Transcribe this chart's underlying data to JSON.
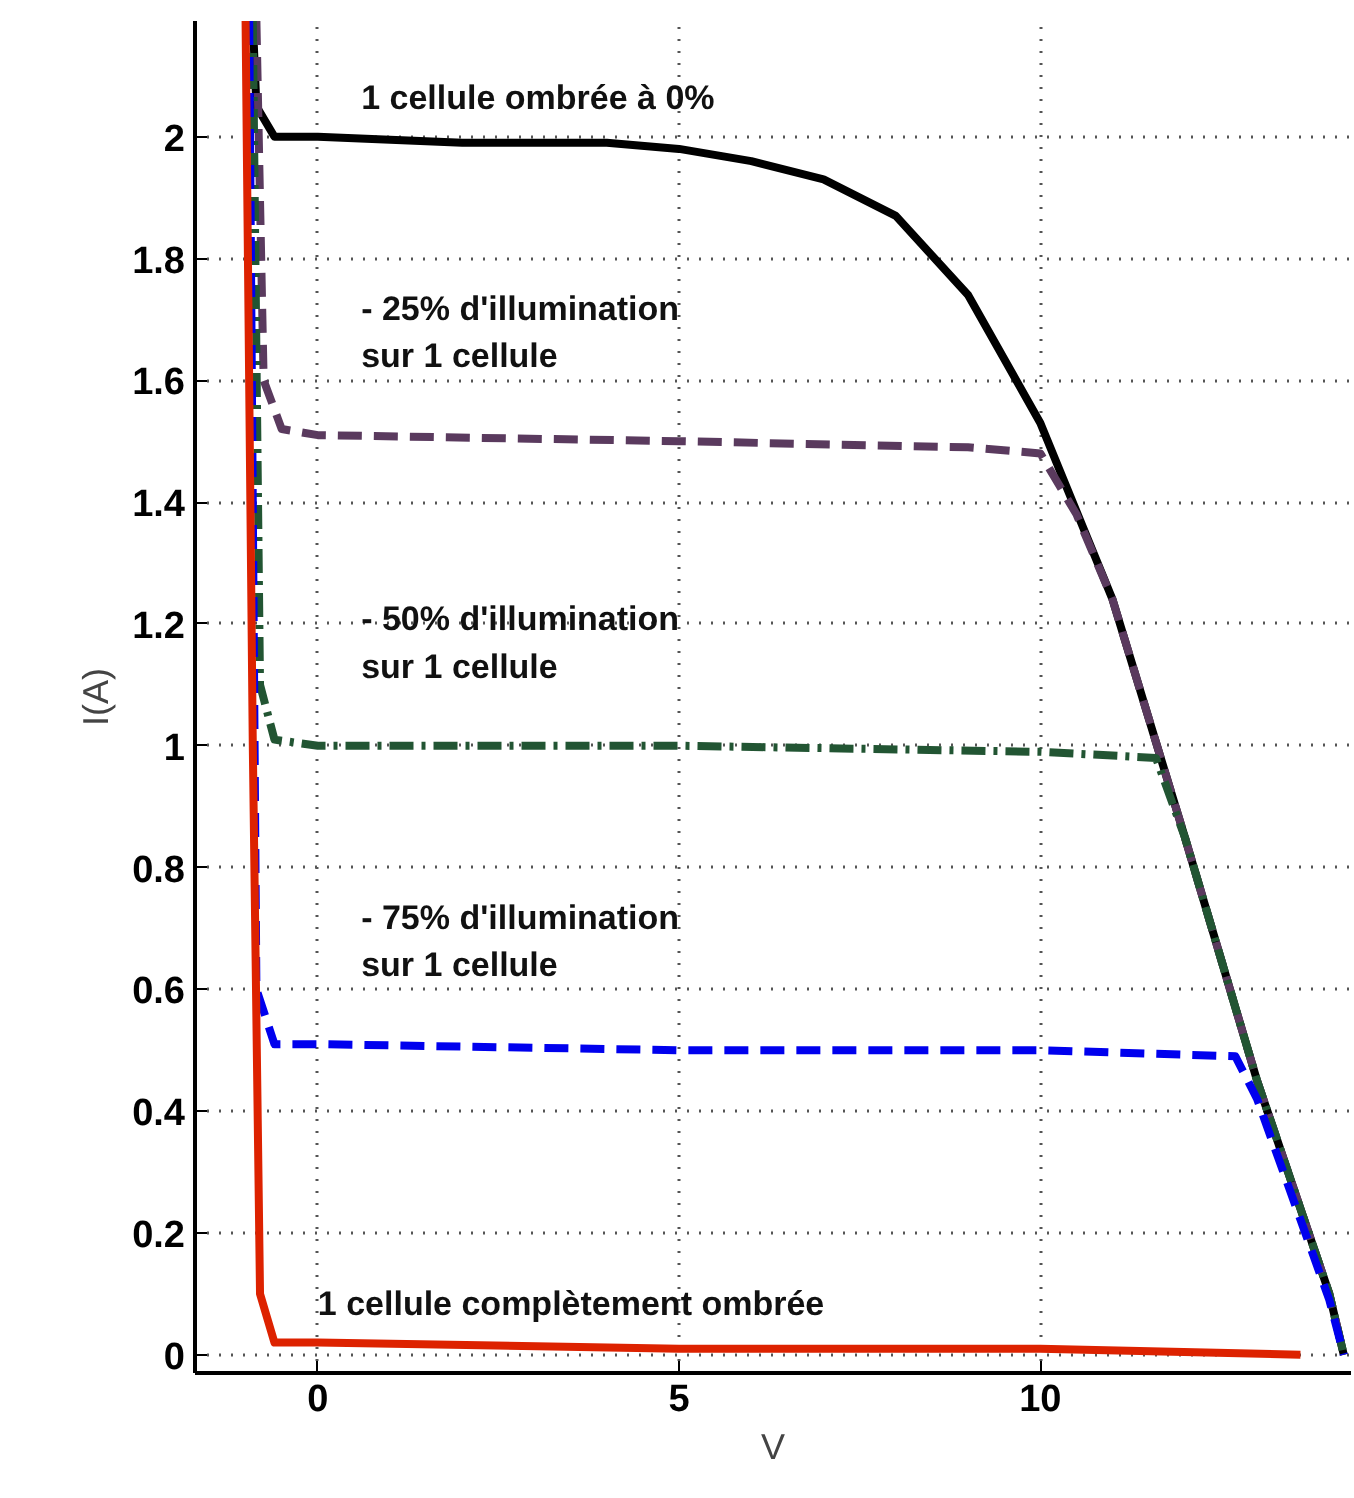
{
  "chart_data": {
    "type": "line",
    "xlabel": "V",
    "ylabel": "I(A)",
    "xlim": [
      -1.7,
      14.3
    ],
    "ylim": [
      -0.03,
      2.19
    ],
    "xticks": [
      0,
      5,
      10
    ],
    "yticks": [
      0,
      0.2,
      0.4,
      0.6,
      0.8,
      1,
      1.2,
      1.4,
      1.6,
      1.8,
      2
    ],
    "grid": true,
    "legend": false,
    "marker": "none",
    "series": [
      {
        "name": "1 cellule ombrée à 0%",
        "color": "#000000",
        "line_style": "solid",
        "x": [
          -0.9,
          -0.85,
          -0.6,
          0,
          2,
          4,
          5,
          6,
          7,
          8,
          9,
          10,
          11,
          12,
          13,
          14,
          14.2
        ],
        "values": [
          2.19,
          2.05,
          2.0,
          2.0,
          1.99,
          1.99,
          1.98,
          1.96,
          1.93,
          1.87,
          1.74,
          1.53,
          1.24,
          0.85,
          0.45,
          0.1,
          0
        ]
      },
      {
        "name": "- 25% d'illumination\nsur 1 cellule",
        "color": "#5a3a5e",
        "line_style": "dashed",
        "x": [
          -0.85,
          -0.75,
          -0.5,
          0,
          5,
          9,
          10,
          10.5,
          11,
          12,
          13,
          14,
          14.2
        ],
        "values": [
          2.19,
          1.6,
          1.52,
          1.51,
          1.5,
          1.49,
          1.48,
          1.38,
          1.24,
          0.85,
          0.45,
          0.1,
          0
        ]
      },
      {
        "name": "- 50% d'illumination\nsur 1 cellule",
        "color": "#225533",
        "line_style": "dashdot",
        "x": [
          -0.9,
          -0.8,
          -0.6,
          0,
          5,
          10,
          11.6,
          12,
          13,
          14,
          14.2
        ],
        "values": [
          2.19,
          1.1,
          1.01,
          1.0,
          1.0,
          0.99,
          0.98,
          0.85,
          0.45,
          0.1,
          0
        ]
      },
      {
        "name": "- 75% d'illumination\nsur 1 cellule",
        "color": "#0000ee",
        "line_style": "dashed",
        "x": [
          -0.95,
          -0.85,
          -0.6,
          0,
          5,
          10,
          12.7,
          13,
          14,
          14.2
        ],
        "values": [
          2.19,
          0.6,
          0.51,
          0.51,
          0.5,
          0.5,
          0.49,
          0.42,
          0.09,
          0
        ]
      },
      {
        "name": "1 cellule complètement ombrée",
        "color": "#dd2200",
        "line_style": "solid",
        "x": [
          -1.0,
          -0.9,
          -0.8,
          -0.6,
          0,
          5,
          10,
          13.6
        ],
        "values": [
          2.19,
          1.0,
          0.1,
          0.02,
          0.02,
          0.01,
          0.01,
          0.0
        ]
      }
    ]
  }
}
